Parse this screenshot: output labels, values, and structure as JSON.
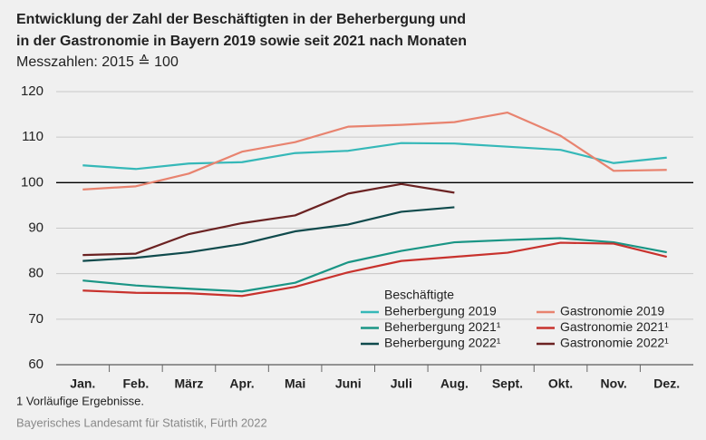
{
  "chart_data": {
    "type": "line",
    "title": "Entwicklung der Zahl der Beschäftigten in der Beherbergung und",
    "title_line2": "in der Gastronomie in Bayern 2019 sowie seit 2021 nach Monaten",
    "subtitle": "Messzahlen: 2015 ≙ 100",
    "categories": [
      "Jan.",
      "Feb.",
      "März",
      "Apr.",
      "Mai",
      "Juni",
      "Juli",
      "Aug.",
      "Sept.",
      "Okt.",
      "Nov.",
      "Dez."
    ],
    "legend_title": "Beschäftigte",
    "series": [
      {
        "name": "Beherbergung 2019",
        "color": "#35b8b8",
        "values": [
          103.8,
          103.0,
          104.2,
          104.5,
          106.5,
          107.0,
          108.7,
          108.6,
          107.9,
          107.2,
          104.3,
          105.5
        ]
      },
      {
        "name": "Beherbergung 2021¹",
        "color": "#1a9585",
        "values": [
          78.5,
          77.4,
          76.7,
          76.1,
          78.0,
          82.5,
          85.0,
          86.9,
          87.4,
          87.8,
          86.9,
          84.7
        ]
      },
      {
        "name": "Beherbergung 2022¹",
        "color": "#0f4a4c",
        "values": [
          82.8,
          83.5,
          84.7,
          86.5,
          89.3,
          90.8,
          93.6,
          94.6,
          null,
          null,
          null,
          null
        ]
      },
      {
        "name": "Gastronomie 2019",
        "color": "#e8836f",
        "values": [
          98.5,
          99.2,
          102.0,
          106.8,
          108.9,
          112.3,
          112.7,
          113.3,
          115.4,
          110.3,
          102.6,
          102.8
        ]
      },
      {
        "name": "Gastronomie 2021¹",
        "color": "#c8322d",
        "values": [
          76.3,
          75.8,
          75.7,
          75.1,
          77.1,
          80.3,
          82.8,
          83.7,
          84.6,
          86.8,
          86.6,
          83.7
        ]
      },
      {
        "name": "Gastronomie 2022¹",
        "color": "#6b2222",
        "values": [
          84.1,
          84.4,
          88.7,
          91.1,
          92.8,
          97.6,
          99.7,
          97.8,
          null,
          null,
          null,
          null
        ]
      }
    ],
    "ylim": [
      60,
      120
    ],
    "yticks": [
      60,
      70,
      80,
      90,
      100,
      110,
      120
    ],
    "grid": true,
    "reference_line": 100,
    "footnote": "1  Vorläufige Ergebnisse.",
    "source": "Bayerisches Landesamt für Statistik, Fürth 2022"
  }
}
